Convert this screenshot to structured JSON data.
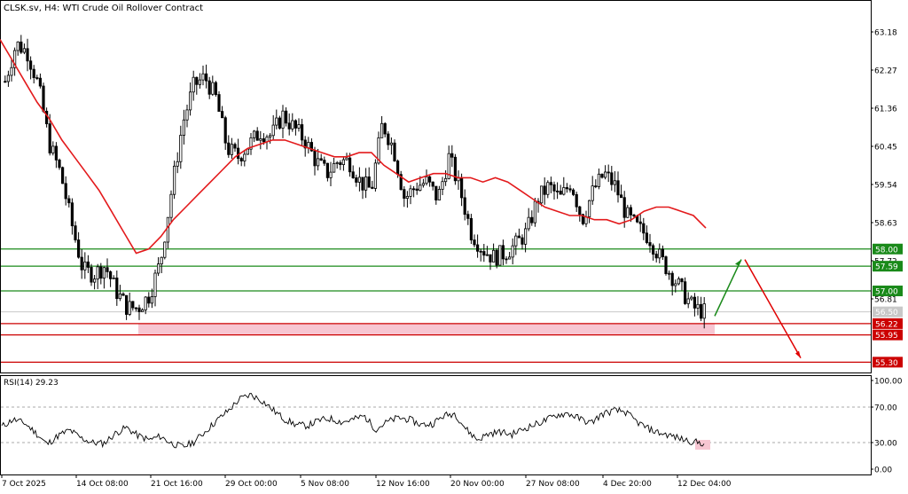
{
  "header": {
    "symbol_line": "CLSK.sv, H4:  WTI Crude Oil Rollover Contract"
  },
  "colors": {
    "candles": "#000000",
    "ma": "#e31a1c",
    "support": "#cc0000",
    "resistance": "#1a8a1a",
    "zone": "#f7c6d2",
    "arrow_up": "#1a8a1a",
    "arrow_down": "#e00000",
    "current_price_bg": "#c8c8c8"
  },
  "chart_data": [
    {
      "type": "candlestick",
      "title": "CLSK.sv, H4:  WTI Crude Oil Rollover Contract",
      "y_ticks": [
        "63.18",
        "62.27",
        "61.36",
        "60.45",
        "59.54",
        "58.63",
        "57.72",
        "56.81"
      ],
      "ylim": [
        55.1,
        63.6
      ],
      "x_tick_labels": [
        "7 Oct 2025",
        "14 Oct 08:00",
        "21 Oct 16:00",
        "29 Oct 00:00",
        "5 Nov 08:00",
        "12 Nov 16:00",
        "20 Nov 00:00",
        "27 Nov 08:00",
        "4 Dec 20:00",
        "12 Dec 04:00"
      ],
      "price_series": [
        62.0,
        62.9,
        62.7,
        61.9,
        60.5,
        59.8,
        58.6,
        57.5,
        57.4,
        57.6,
        57.0,
        56.6,
        56.6,
        56.9,
        57.7,
        59.4,
        61.0,
        61.9,
        62.1,
        61.6,
        60.4,
        60.2,
        60.5,
        60.8,
        60.7,
        61.2,
        60.9,
        60.6,
        60.1,
        59.8,
        60.1,
        60.1,
        59.6,
        59.4,
        61.0,
        60.4,
        59.2,
        59.5,
        59.6,
        59.2,
        60.2,
        59.4,
        58.4,
        58.0,
        57.8,
        57.9,
        58.1,
        58.4,
        59.2,
        59.5,
        59.2,
        59.6,
        58.7,
        59.4,
        59.8,
        59.5,
        58.8,
        58.5,
        58.3,
        57.8,
        57.4,
        57.0,
        56.6,
        56.5
      ],
      "ma_label": "",
      "ma_series": [
        63.0,
        62.5,
        62.0,
        61.5,
        61.1,
        60.6,
        60.2,
        59.8,
        59.4,
        58.9,
        58.4,
        57.9,
        58.0,
        58.3,
        58.7,
        59.0,
        59.3,
        59.6,
        59.9,
        60.2,
        60.4,
        60.5,
        60.6,
        60.6,
        60.5,
        60.4,
        60.3,
        60.2,
        60.2,
        60.3,
        60.3,
        60.0,
        59.8,
        59.6,
        59.7,
        59.8,
        59.8,
        59.7,
        59.7,
        59.6,
        59.7,
        59.6,
        59.4,
        59.2,
        59.0,
        58.9,
        58.8,
        58.8,
        58.7,
        58.7,
        58.6,
        58.7,
        58.9,
        59.0,
        59.0,
        58.9,
        58.8,
        58.5
      ],
      "levels": [
        {
          "label": "58.00",
          "value": 58.0,
          "kind": "resistance"
        },
        {
          "label": "57.59",
          "value": 57.59,
          "kind": "resistance"
        },
        {
          "label": "57.00",
          "value": 57.0,
          "kind": "resistance"
        },
        {
          "label": "56.22",
          "value": 56.22,
          "kind": "support"
        },
        {
          "label": "55.95",
          "value": 55.95,
          "kind": "support"
        },
        {
          "label": "55.30",
          "value": 55.3,
          "kind": "support"
        }
      ],
      "zone": {
        "from": 55.95,
        "to": 56.22
      },
      "current_price_label": "56.50",
      "projection": {
        "start": 56.4,
        "up_target": 57.75,
        "down_target": 55.4
      },
      "grid": false
    },
    {
      "type": "line",
      "indicator_label": "RSI(14) 29.23",
      "y_ticks": [
        "100.00",
        "70.00",
        "30.00",
        "0.00"
      ],
      "ylim": [
        0,
        100
      ],
      "levels": [
        70,
        30
      ],
      "highlight": {
        "from": 22,
        "to": 33
      },
      "series": [
        48,
        56,
        52,
        41,
        28,
        38,
        44,
        35,
        30,
        29,
        40,
        47,
        38,
        33,
        37,
        29,
        25,
        31,
        43,
        55,
        66,
        79,
        84,
        77,
        66,
        56,
        50,
        49,
        55,
        57,
        53,
        56,
        60,
        45,
        53,
        58,
        56,
        50,
        51,
        60,
        63,
        45,
        33,
        40,
        42,
        39,
        45,
        50,
        55,
        61,
        63,
        57,
        52,
        62,
        66,
        65,
        54,
        46,
        41,
        38,
        34,
        31,
        29
      ]
    }
  ]
}
